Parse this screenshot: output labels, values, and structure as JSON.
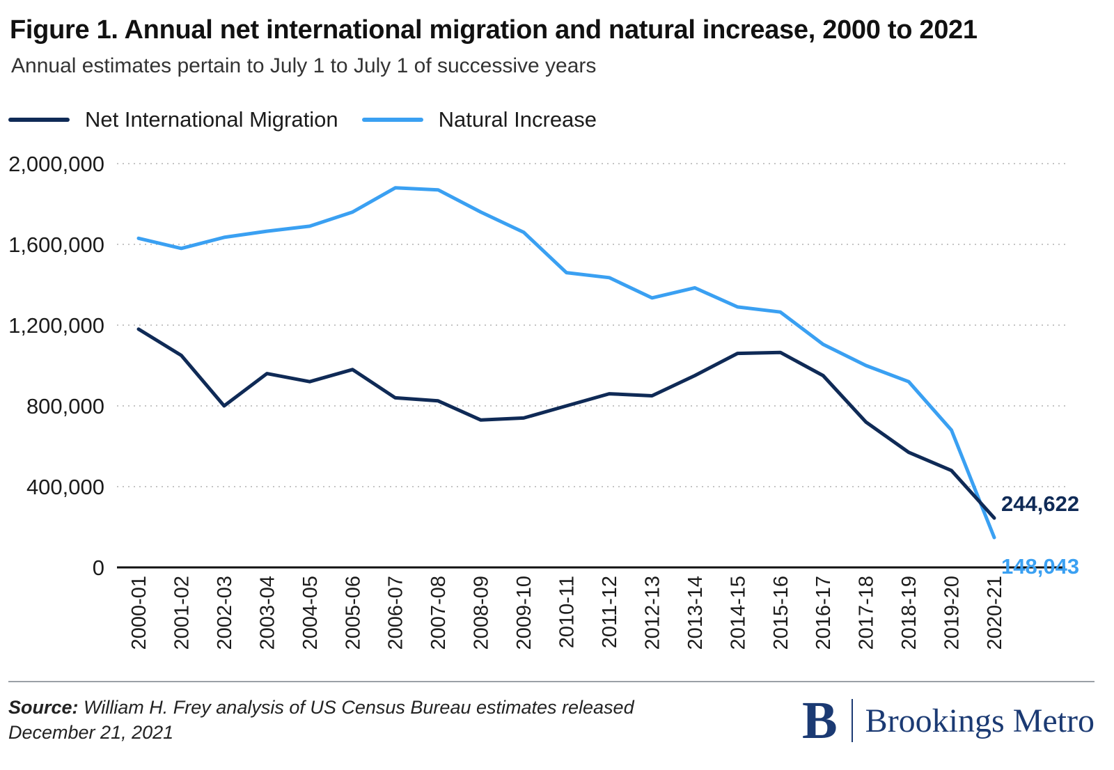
{
  "header": {
    "title": "Figure 1. Annual net international migration and natural increase, 2000 to 2021",
    "subtitle": "Annual estimates pertain to July 1 to July 1 of successive years"
  },
  "legend": [
    {
      "label": "Net International Migration",
      "color": "#0f2a56"
    },
    {
      "label": "Natural Increase",
      "color": "#3aa0f2"
    }
  ],
  "chart_data": {
    "type": "line",
    "title": "Figure 1. Annual net international migration and natural increase, 2000 to 2021",
    "subtitle": "Annual estimates pertain to July 1 to July 1 of successive years",
    "xlabel": "",
    "ylabel": "",
    "categories": [
      "2000-01",
      "2001-02",
      "2002-03",
      "2003-04",
      "2004-05",
      "2005-06",
      "2006-07",
      "2007-08",
      "2008-09",
      "2009-10",
      "2010-11",
      "2011-12",
      "2012-13",
      "2013-14",
      "2014-15",
      "2015-16",
      "2016-17",
      "2017-18",
      "2018-19",
      "2019-20",
      "2020-21"
    ],
    "ylim": [
      0,
      2000000
    ],
    "yticks": [
      0,
      400000,
      800000,
      1200000,
      1600000,
      2000000
    ],
    "ytick_labels": [
      "0",
      "400,000",
      "800,000",
      "1,200,000",
      "1,600,000",
      "2,000,000"
    ],
    "grid": "horizontal dotted",
    "legend_position": "top-left",
    "series": [
      {
        "name": "Net International Migration",
        "color": "#0f2a56",
        "values": [
          1180000,
          1050000,
          800000,
          960000,
          920000,
          980000,
          840000,
          825000,
          730000,
          740000,
          800000,
          860000,
          850000,
          950000,
          1060000,
          1065000,
          950000,
          720000,
          570000,
          480000,
          244622
        ],
        "end_label": "244,622"
      },
      {
        "name": "Natural Increase",
        "color": "#3aa0f2",
        "values": [
          1630000,
          1580000,
          1635000,
          1665000,
          1690000,
          1760000,
          1880000,
          1870000,
          1760000,
          1660000,
          1460000,
          1435000,
          1335000,
          1385000,
          1290000,
          1265000,
          1105000,
          1000000,
          920000,
          680000,
          148043
        ],
        "end_label": "148,043"
      }
    ]
  },
  "footer": {
    "source_label": "Source:",
    "source_text": " William H. Frey analysis of US Census Bureau estimates released December 21, 2021",
    "brand_letter": "B",
    "brand_name": "Brookings Metro"
  }
}
